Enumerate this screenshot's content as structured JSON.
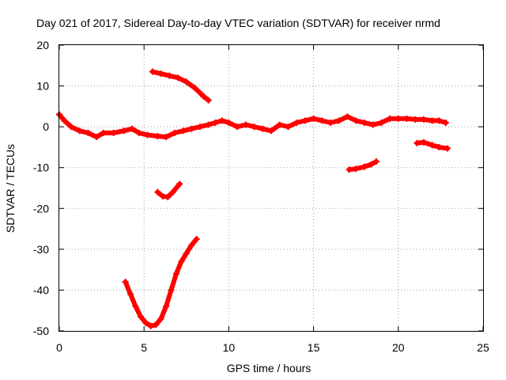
{
  "chart_data": {
    "type": "scatter",
    "title": "Day 021 of 2017, Sidereal Day-to-day VTEC variation (SDTVAR) for receiver nrmd",
    "xlabel": "GPS time / hours",
    "ylabel": "SDTVAR / TECUs",
    "xlim": [
      0,
      25
    ],
    "ylim": [
      -50,
      20
    ],
    "xticks": [
      0,
      5,
      10,
      15,
      20,
      25
    ],
    "yticks": [
      -50,
      -40,
      -30,
      -20,
      -10,
      0,
      10,
      20
    ],
    "grid": true,
    "marker_color": "#ff0000",
    "series": [
      {
        "name": "main-band",
        "points": [
          [
            0,
            3
          ],
          [
            0.3,
            1.5
          ],
          [
            0.7,
            0
          ],
          [
            1.2,
            -1
          ],
          [
            1.7,
            -1.5
          ],
          [
            2.2,
            -2.5
          ],
          [
            2.6,
            -1.5
          ],
          [
            3.2,
            -1.5
          ],
          [
            3.8,
            -1
          ],
          [
            4.3,
            -0.5
          ],
          [
            4.7,
            -1.5
          ],
          [
            5.2,
            -2
          ],
          [
            5.8,
            -2.3
          ],
          [
            6.3,
            -2.5
          ],
          [
            6.8,
            -1.5
          ],
          [
            7.3,
            -1
          ],
          [
            7.8,
            -0.5
          ],
          [
            8.3,
            0
          ],
          [
            8.8,
            0.5
          ],
          [
            9.2,
            1
          ],
          [
            9.6,
            1.5
          ],
          [
            10,
            1
          ],
          [
            10.5,
            0
          ],
          [
            11,
            0.5
          ],
          [
            11.5,
            0
          ],
          [
            12,
            -0.5
          ],
          [
            12.5,
            -1
          ],
          [
            13,
            0.5
          ],
          [
            13.5,
            0
          ],
          [
            14,
            1
          ],
          [
            14.5,
            1.5
          ],
          [
            15,
            2
          ],
          [
            15.5,
            1.5
          ],
          [
            16,
            1
          ],
          [
            16.5,
            1.5
          ],
          [
            17,
            2.5
          ],
          [
            17.5,
            1.5
          ],
          [
            18,
            1
          ],
          [
            18.5,
            0.5
          ],
          [
            19,
            1
          ],
          [
            19.5,
            2
          ],
          [
            20,
            2
          ],
          [
            20.5,
            2
          ],
          [
            21,
            1.8
          ],
          [
            21.5,
            1.8
          ],
          [
            22,
            1.5
          ],
          [
            22.4,
            1.5
          ],
          [
            22.8,
            1
          ]
        ]
      },
      {
        "name": "arc-upper",
        "points": [
          [
            5.5,
            13.5
          ],
          [
            6,
            13
          ],
          [
            6.5,
            12.5
          ],
          [
            7,
            12
          ],
          [
            7.5,
            11
          ],
          [
            8,
            9.5
          ],
          [
            8.5,
            7.5
          ],
          [
            8.8,
            6.5
          ]
        ]
      },
      {
        "name": "arc-mid",
        "points": [
          [
            5.8,
            -16
          ],
          [
            6.1,
            -17
          ],
          [
            6.4,
            -17.2
          ],
          [
            6.7,
            -16
          ],
          [
            7.1,
            -14
          ]
        ]
      },
      {
        "name": "arc-deep",
        "points": [
          [
            3.9,
            -38
          ],
          [
            4.2,
            -41
          ],
          [
            4.5,
            -44
          ],
          [
            4.8,
            -46.5
          ],
          [
            5.1,
            -48
          ],
          [
            5.4,
            -48.8
          ],
          [
            5.7,
            -48.5
          ],
          [
            6.0,
            -47
          ],
          [
            6.3,
            -44
          ],
          [
            6.6,
            -40
          ],
          [
            6.9,
            -36
          ],
          [
            7.2,
            -33
          ],
          [
            7.5,
            -31
          ],
          [
            7.8,
            -29
          ],
          [
            8.1,
            -27.5
          ]
        ]
      },
      {
        "name": "arc-right-1",
        "points": [
          [
            17.1,
            -10.5
          ],
          [
            17.5,
            -10.3
          ],
          [
            18,
            -9.8
          ],
          [
            18.4,
            -9.2
          ],
          [
            18.7,
            -8.5
          ]
        ]
      },
      {
        "name": "arc-right-2",
        "points": [
          [
            21.1,
            -4
          ],
          [
            21.5,
            -3.8
          ],
          [
            22,
            -4.5
          ],
          [
            22.4,
            -5
          ],
          [
            22.9,
            -5.3
          ]
        ]
      }
    ]
  }
}
